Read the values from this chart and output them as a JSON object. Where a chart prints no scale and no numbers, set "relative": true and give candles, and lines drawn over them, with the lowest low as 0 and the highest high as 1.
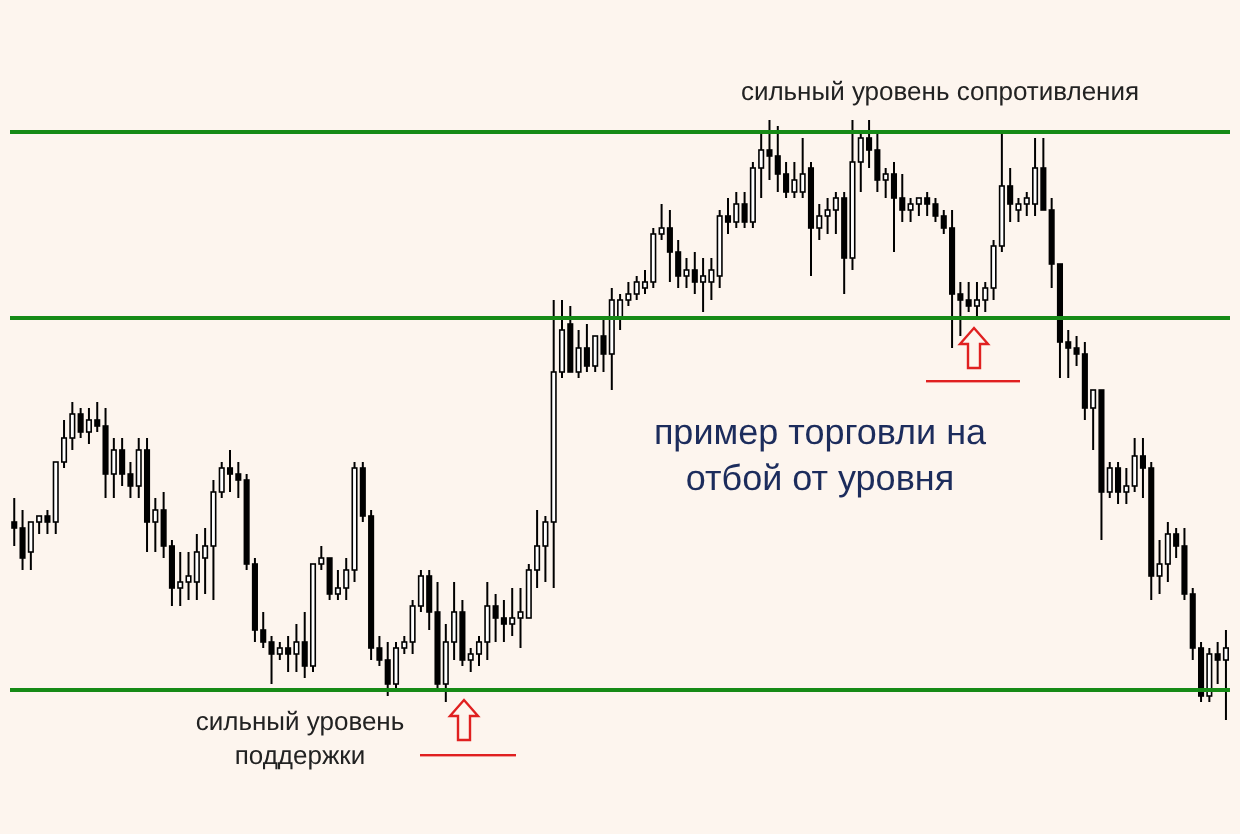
{
  "chart_data": {
    "type": "candlestick",
    "relative": true,
    "color": "#000000",
    "annotations": [
      "пример торговли на отбой от уровня"
    ],
    "ref_lines": [
      {
        "axis": "y",
        "value": 0.98,
        "label": "сильный уровень сопротивления",
        "color": "#168a16"
      },
      {
        "axis": "y",
        "value": 0.67,
        "color": "#168a16"
      },
      {
        "axis": "y",
        "value": 0.05,
        "label": "сильный уровень поддержки",
        "color": "#168a16"
      }
    ],
    "categories": [
      null,
      null,
      null,
      null,
      null,
      null,
      null,
      null,
      null,
      null,
      null,
      null,
      null,
      null,
      null,
      null,
      null,
      null,
      null,
      null,
      null,
      null,
      null,
      null,
      null,
      null,
      null,
      null,
      null,
      null,
      null,
      null,
      null,
      null,
      null,
      null,
      null,
      null,
      null,
      null,
      null,
      null,
      null,
      null,
      null,
      null,
      null,
      null,
      null,
      null,
      null,
      null,
      null,
      null,
      null,
      null,
      null,
      null,
      null,
      null,
      null,
      null,
      null,
      null,
      null,
      null,
      null,
      null,
      null,
      null,
      null,
      null,
      null,
      null,
      null,
      null,
      null,
      null,
      null,
      null,
      null,
      null,
      null,
      null,
      null,
      null,
      null,
      null,
      null,
      null,
      null,
      null,
      null,
      null,
      null,
      null,
      null,
      null,
      null,
      null,
      null,
      null,
      null,
      null,
      null,
      null,
      null,
      null,
      null,
      null,
      null,
      null,
      null,
      null,
      null,
      null,
      null,
      null,
      null,
      null,
      null,
      null,
      null,
      null,
      null,
      null,
      null,
      null,
      null,
      null,
      null,
      null,
      null,
      null,
      null,
      null,
      null,
      null,
      null,
      null,
      null,
      null,
      null,
      null,
      null,
      null,
      null
    ],
    "ohlc": [
      [
        0.33,
        0.37,
        0.29,
        0.32
      ],
      [
        0.32,
        0.35,
        0.25,
        0.27
      ],
      [
        0.28,
        0.33,
        0.25,
        0.33
      ],
      [
        0.33,
        0.34,
        0.31,
        0.34
      ],
      [
        0.34,
        0.35,
        0.31,
        0.33
      ],
      [
        0.33,
        0.43,
        0.31,
        0.43
      ],
      [
        0.43,
        0.5,
        0.42,
        0.47
      ],
      [
        0.47,
        0.53,
        0.45,
        0.51
      ],
      [
        0.51,
        0.52,
        0.47,
        0.48
      ],
      [
        0.48,
        0.52,
        0.46,
        0.5
      ],
      [
        0.5,
        0.53,
        0.48,
        0.49
      ],
      [
        0.49,
        0.52,
        0.37,
        0.41
      ],
      [
        0.41,
        0.47,
        0.37,
        0.45
      ],
      [
        0.45,
        0.47,
        0.39,
        0.41
      ],
      [
        0.41,
        0.43,
        0.37,
        0.39
      ],
      [
        0.39,
        0.47,
        0.37,
        0.45
      ],
      [
        0.45,
        0.47,
        0.28,
        0.33
      ],
      [
        0.33,
        0.37,
        0.28,
        0.35
      ],
      [
        0.35,
        0.38,
        0.27,
        0.29
      ],
      [
        0.29,
        0.3,
        0.19,
        0.22
      ],
      [
        0.22,
        0.28,
        0.19,
        0.23
      ],
      [
        0.23,
        0.28,
        0.2,
        0.24
      ],
      [
        0.23,
        0.31,
        0.2,
        0.28
      ],
      [
        0.27,
        0.32,
        0.21,
        0.29
      ],
      [
        0.29,
        0.4,
        0.2,
        0.38
      ],
      [
        0.38,
        0.43,
        0.37,
        0.42
      ],
      [
        0.42,
        0.45,
        0.38,
        0.41
      ],
      [
        0.41,
        0.43,
        0.37,
        0.4
      ],
      [
        0.4,
        0.41,
        0.25,
        0.26
      ],
      [
        0.26,
        0.27,
        0.13,
        0.15
      ],
      [
        0.15,
        0.18,
        0.12,
        0.13
      ],
      [
        0.13,
        0.14,
        0.06,
        0.11
      ],
      [
        0.11,
        0.13,
        0.1,
        0.12
      ],
      [
        0.12,
        0.14,
        0.08,
        0.11
      ],
      [
        0.11,
        0.16,
        0.08,
        0.13
      ],
      [
        0.13,
        0.18,
        0.07,
        0.09
      ],
      [
        0.09,
        0.26,
        0.08,
        0.26
      ],
      [
        0.26,
        0.29,
        0.25,
        0.27
      ],
      [
        0.27,
        0.27,
        0.2,
        0.21
      ],
      [
        0.21,
        0.25,
        0.2,
        0.22
      ],
      [
        0.22,
        0.27,
        0.2,
        0.25
      ],
      [
        0.25,
        0.43,
        0.23,
        0.42
      ],
      [
        0.42,
        0.43,
        0.33,
        0.34
      ],
      [
        0.34,
        0.35,
        0.1,
        0.12
      ],
      [
        0.12,
        0.14,
        0.09,
        0.1
      ],
      [
        0.1,
        0.13,
        0.04,
        0.06
      ],
      [
        0.06,
        0.13,
        0.05,
        0.12
      ],
      [
        0.12,
        0.14,
        0.11,
        0.13
      ],
      [
        0.13,
        0.2,
        0.11,
        0.19
      ],
      [
        0.19,
        0.25,
        0.18,
        0.24
      ],
      [
        0.24,
        0.25,
        0.15,
        0.18
      ],
      [
        0.18,
        0.23,
        0.05,
        0.06
      ],
      [
        0.06,
        0.16,
        0.03,
        0.13
      ],
      [
        0.13,
        0.23,
        0.1,
        0.18
      ],
      [
        0.18,
        0.2,
        0.09,
        0.1
      ],
      [
        0.1,
        0.12,
        0.08,
        0.11
      ],
      [
        0.11,
        0.14,
        0.09,
        0.13
      ],
      [
        0.13,
        0.23,
        0.1,
        0.19
      ],
      [
        0.19,
        0.21,
        0.13,
        0.17
      ],
      [
        0.17,
        0.2,
        0.13,
        0.16
      ],
      [
        0.16,
        0.22,
        0.14,
        0.17
      ],
      [
        0.17,
        0.22,
        0.12,
        0.18
      ],
      [
        0.17,
        0.26,
        0.17,
        0.25
      ],
      [
        0.25,
        0.35,
        0.22,
        0.29
      ],
      [
        0.29,
        0.34,
        0.23,
        0.33
      ],
      [
        0.33,
        0.7,
        0.22,
        0.58
      ],
      [
        0.58,
        0.7,
        0.57,
        0.65
      ],
      [
        0.66,
        0.69,
        0.58,
        0.58
      ],
      [
        0.58,
        0.65,
        0.57,
        0.62
      ],
      [
        0.62,
        0.66,
        0.58,
        0.59
      ],
      [
        0.59,
        0.64,
        0.58,
        0.64
      ],
      [
        0.64,
        0.67,
        0.58,
        0.61
      ],
      [
        0.61,
        0.72,
        0.55,
        0.7
      ],
      [
        0.67,
        0.71,
        0.65,
        0.7
      ],
      [
        0.7,
        0.73,
        0.69,
        0.71
      ],
      [
        0.71,
        0.74,
        0.7,
        0.73
      ],
      [
        0.72,
        0.75,
        0.71,
        0.73
      ],
      [
        0.73,
        0.82,
        0.72,
        0.81
      ],
      [
        0.81,
        0.86,
        0.8,
        0.82
      ],
      [
        0.82,
        0.85,
        0.73,
        0.78
      ],
      [
        0.78,
        0.8,
        0.72,
        0.74
      ],
      [
        0.74,
        0.77,
        0.72,
        0.75
      ],
      [
        0.75,
        0.78,
        0.71,
        0.73
      ],
      [
        0.73,
        0.77,
        0.68,
        0.74
      ],
      [
        0.73,
        0.77,
        0.7,
        0.75
      ],
      [
        0.74,
        0.85,
        0.72,
        0.84
      ],
      [
        0.84,
        0.87,
        0.81,
        0.83
      ],
      [
        0.83,
        0.88,
        0.82,
        0.86
      ],
      [
        0.86,
        0.88,
        0.82,
        0.83
      ],
      [
        0.83,
        0.93,
        0.82,
        0.92
      ],
      [
        0.92,
        0.98,
        0.87,
        0.95
      ],
      [
        0.95,
        1,
        0.9,
        0.94
      ],
      [
        0.94,
        0.99,
        0.88,
        0.91
      ],
      [
        0.91,
        0.93,
        0.87,
        0.88
      ],
      [
        0.88,
        0.93,
        0.87,
        0.9
      ],
      [
        0.88,
        0.97,
        0.87,
        0.91
      ],
      [
        0.92,
        0.93,
        0.74,
        0.82
      ],
      [
        0.82,
        0.86,
        0.8,
        0.84
      ],
      [
        0.84,
        0.87,
        0.81,
        0.85
      ],
      [
        0.85,
        0.88,
        0.81,
        0.87
      ],
      [
        0.87,
        0.88,
        0.71,
        0.77
      ],
      [
        0.77,
        1,
        0.75,
        0.93
      ],
      [
        0.93,
        0.98,
        0.88,
        0.97
      ],
      [
        0.97,
        1,
        0.92,
        0.95
      ],
      [
        0.95,
        0.98,
        0.88,
        0.9
      ],
      [
        0.9,
        0.92,
        0.87,
        0.91
      ],
      [
        0.91,
        0.93,
        0.78,
        0.87
      ],
      [
        0.87,
        0.91,
        0.83,
        0.85
      ],
      [
        0.85,
        0.87,
        0.83,
        0.86
      ],
      [
        0.86,
        0.87,
        0.84,
        0.87
      ],
      [
        0.87,
        0.88,
        0.84,
        0.86
      ],
      [
        0.86,
        0.87,
        0.83,
        0.84
      ],
      [
        0.84,
        0.85,
        0.81,
        0.82
      ],
      [
        0.82,
        0.85,
        0.62,
        0.71
      ],
      [
        0.71,
        0.73,
        0.64,
        0.7
      ],
      [
        0.7,
        0.73,
        0.68,
        0.69
      ],
      [
        0.69,
        0.73,
        0.67,
        0.7
      ],
      [
        0.7,
        0.73,
        0.68,
        0.72
      ],
      [
        0.72,
        0.8,
        0.7,
        0.79
      ],
      [
        0.79,
        0.98,
        0.78,
        0.89
      ],
      [
        0.89,
        0.92,
        0.83,
        0.86
      ],
      [
        0.85,
        0.87,
        0.83,
        0.86
      ],
      [
        0.86,
        0.88,
        0.84,
        0.87
      ],
      [
        0.86,
        0.97,
        0.84,
        0.92
      ],
      [
        0.92,
        0.97,
        0.85,
        0.85
      ],
      [
        0.85,
        0.87,
        0.72,
        0.76
      ],
      [
        0.76,
        0.76,
        0.57,
        0.63
      ],
      [
        0.63,
        0.65,
        0.57,
        0.62
      ],
      [
        0.62,
        0.64,
        0.59,
        0.61
      ],
      [
        0.61,
        0.63,
        0.5,
        0.52
      ],
      [
        0.52,
        0.55,
        0.45,
        0.55
      ],
      [
        0.55,
        0.55,
        0.3,
        0.38
      ],
      [
        0.38,
        0.43,
        0.37,
        0.42
      ],
      [
        0.42,
        0.43,
        0.36,
        0.38
      ],
      [
        0.38,
        0.42,
        0.36,
        0.39
      ],
      [
        0.39,
        0.47,
        0.38,
        0.44
      ],
      [
        0.44,
        0.47,
        0.37,
        0.42
      ],
      [
        0.42,
        0.43,
        0.2,
        0.24
      ],
      [
        0.24,
        0.3,
        0.21,
        0.26
      ],
      [
        0.26,
        0.33,
        0.23,
        0.31
      ],
      [
        0.31,
        0.32,
        0.27,
        0.29
      ],
      [
        0.29,
        0.32,
        0.2,
        0.21
      ],
      [
        0.21,
        0.22,
        0.1,
        0.12
      ],
      [
        0.12,
        0.13,
        0.03,
        0.04
      ],
      [
        0.04,
        0.12,
        0.03,
        0.11
      ],
      [
        0.11,
        0.13,
        0.06,
        0.1
      ],
      [
        0.1,
        0.15,
        0,
        0.12
      ]
    ]
  }
}
